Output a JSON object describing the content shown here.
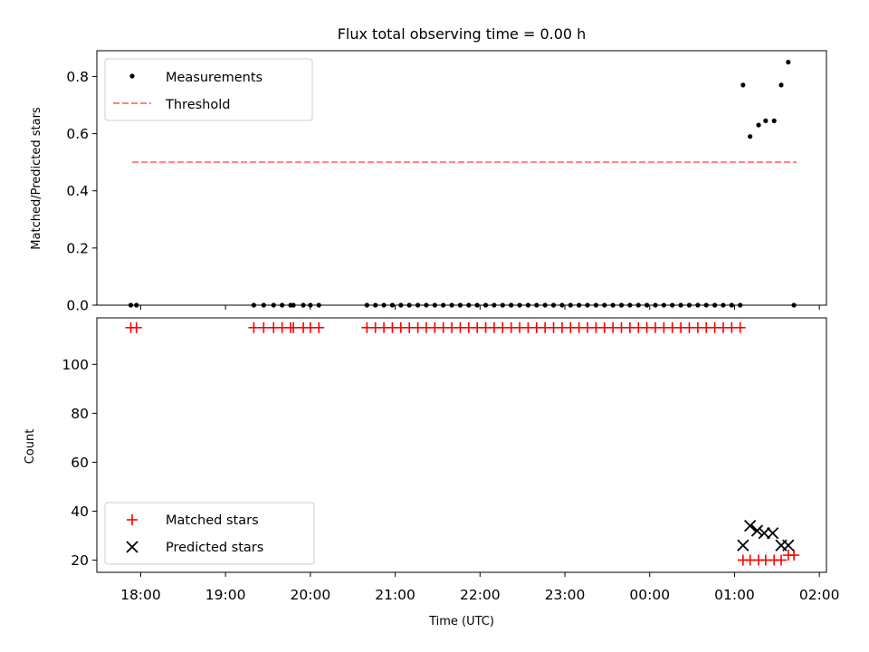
{
  "chart_data": [
    {
      "type": "scatter",
      "title": "Flux total observing time = 0.00 h",
      "xlabel": "",
      "ylabel": "Matched/Predicted stars",
      "xlim": [
        "17:29",
        "02:05"
      ],
      "ylim": [
        0,
        0.89
      ],
      "yticks": [
        0.0,
        0.2,
        0.4,
        0.6,
        0.8
      ],
      "ytick_labels": [
        "0.0",
        "0.2",
        "0.4",
        "0.6",
        "0.8"
      ],
      "grid": false,
      "legend_position": "top-left",
      "series": [
        {
          "name": "Measurements",
          "kind": "scatter",
          "marker": "dot",
          "color": "#000000",
          "points": [
            [
              "17:53",
              0
            ],
            [
              "17:57",
              0
            ],
            [
              "19:20",
              0
            ],
            [
              "19:27",
              0
            ],
            [
              "19:34",
              0
            ],
            [
              "19:40",
              0
            ],
            [
              "19:46",
              0
            ],
            [
              "19:48",
              0
            ],
            [
              "19:55",
              0
            ],
            [
              "20:00",
              0
            ],
            [
              "20:06",
              0
            ],
            [
              "20:40",
              0
            ],
            [
              "20:46",
              0
            ],
            [
              "20:52",
              0
            ],
            [
              "20:58",
              0
            ],
            [
              "21:04",
              0
            ],
            [
              "21:10",
              0
            ],
            [
              "21:16",
              0
            ],
            [
              "21:22",
              0
            ],
            [
              "21:28",
              0
            ],
            [
              "21:34",
              0
            ],
            [
              "21:40",
              0
            ],
            [
              "21:46",
              0
            ],
            [
              "21:52",
              0
            ],
            [
              "21:58",
              0
            ],
            [
              "22:04",
              0
            ],
            [
              "22:10",
              0
            ],
            [
              "22:16",
              0
            ],
            [
              "22:22",
              0
            ],
            [
              "22:28",
              0
            ],
            [
              "22:34",
              0
            ],
            [
              "22:40",
              0
            ],
            [
              "22:46",
              0
            ],
            [
              "22:52",
              0
            ],
            [
              "22:58",
              0
            ],
            [
              "23:04",
              0
            ],
            [
              "23:10",
              0
            ],
            [
              "23:16",
              0
            ],
            [
              "23:22",
              0
            ],
            [
              "23:28",
              0
            ],
            [
              "23:34",
              0
            ],
            [
              "23:40",
              0
            ],
            [
              "23:46",
              0
            ],
            [
              "23:52",
              0
            ],
            [
              "23:58",
              0
            ],
            [
              "00:04",
              0
            ],
            [
              "00:10",
              0
            ],
            [
              "00:16",
              0
            ],
            [
              "00:22",
              0
            ],
            [
              "00:28",
              0
            ],
            [
              "00:34",
              0
            ],
            [
              "00:40",
              0
            ],
            [
              "00:46",
              0
            ],
            [
              "00:52",
              0
            ],
            [
              "00:58",
              0
            ],
            [
              "01:04",
              0
            ],
            [
              "01:06",
              0.77
            ],
            [
              "01:11",
              0.59
            ],
            [
              "01:17",
              0.63
            ],
            [
              "01:22",
              0.645
            ],
            [
              "01:28",
              0.645
            ],
            [
              "01:33",
              0.77
            ],
            [
              "01:38",
              0.85
            ],
            [
              "01:42",
              0
            ]
          ]
        },
        {
          "name": "Threshold",
          "kind": "line",
          "style": "dashed",
          "color": "#ff8080",
          "x": [
            "17:54",
            "01:44"
          ],
          "y": [
            0.5,
            0.5
          ]
        }
      ]
    },
    {
      "type": "scatter",
      "title": "",
      "xlabel": "Time (UTC)",
      "ylabel": "Count",
      "xlim": [
        "17:29",
        "02:05"
      ],
      "ylim": [
        15,
        119
      ],
      "yticks": [
        20,
        40,
        60,
        80,
        100
      ],
      "ytick_labels": [
        "20",
        "40",
        "60",
        "80",
        "100"
      ],
      "xticks": [
        "18:00",
        "19:00",
        "20:00",
        "21:00",
        "22:00",
        "23:00",
        "00:00",
        "01:00",
        "02:00"
      ],
      "xtick_labels": [
        "18:00",
        "19:00",
        "20:00",
        "21:00",
        "22:00",
        "23:00",
        "00:00",
        "01:00",
        "02:00"
      ],
      "grid": false,
      "legend_position": "bottom-left",
      "series": [
        {
          "name": "Matched stars",
          "kind": "scatter",
          "marker": "plus",
          "color": "#ff0000",
          "points": [
            [
              "17:53",
              115
            ],
            [
              "17:57",
              115
            ],
            [
              "19:20",
              115
            ],
            [
              "19:27",
              115
            ],
            [
              "19:34",
              115
            ],
            [
              "19:40",
              115
            ],
            [
              "19:46",
              115
            ],
            [
              "19:48",
              115
            ],
            [
              "19:55",
              115
            ],
            [
              "20:00",
              115
            ],
            [
              "20:06",
              115
            ],
            [
              "20:40",
              115
            ],
            [
              "20:46",
              115
            ],
            [
              "20:52",
              115
            ],
            [
              "20:58",
              115
            ],
            [
              "21:04",
              115
            ],
            [
              "21:10",
              115
            ],
            [
              "21:16",
              115
            ],
            [
              "21:22",
              115
            ],
            [
              "21:28",
              115
            ],
            [
              "21:34",
              115
            ],
            [
              "21:40",
              115
            ],
            [
              "21:46",
              115
            ],
            [
              "21:52",
              115
            ],
            [
              "21:58",
              115
            ],
            [
              "22:04",
              115
            ],
            [
              "22:10",
              115
            ],
            [
              "22:16",
              115
            ],
            [
              "22:22",
              115
            ],
            [
              "22:28",
              115
            ],
            [
              "22:34",
              115
            ],
            [
              "22:40",
              115
            ],
            [
              "22:46",
              115
            ],
            [
              "22:52",
              115
            ],
            [
              "22:58",
              115
            ],
            [
              "23:04",
              115
            ],
            [
              "23:10",
              115
            ],
            [
              "23:16",
              115
            ],
            [
              "23:22",
              115
            ],
            [
              "23:28",
              115
            ],
            [
              "23:34",
              115
            ],
            [
              "23:40",
              115
            ],
            [
              "23:46",
              115
            ],
            [
              "23:52",
              115
            ],
            [
              "23:58",
              115
            ],
            [
              "00:04",
              115
            ],
            [
              "00:10",
              115
            ],
            [
              "00:16",
              115
            ],
            [
              "00:22",
              115
            ],
            [
              "00:28",
              115
            ],
            [
              "00:34",
              115
            ],
            [
              "00:40",
              115
            ],
            [
              "00:46",
              115
            ],
            [
              "00:52",
              115
            ],
            [
              "00:58",
              115
            ],
            [
              "01:04",
              115
            ],
            [
              "01:06",
              20
            ],
            [
              "01:11",
              20
            ],
            [
              "01:17",
              20
            ],
            [
              "01:22",
              20
            ],
            [
              "01:28",
              20
            ],
            [
              "01:33",
              20
            ],
            [
              "01:38",
              22
            ],
            [
              "01:42",
              22
            ]
          ]
        },
        {
          "name": "Predicted stars",
          "kind": "scatter",
          "marker": "x",
          "color": "#000000",
          "points": [
            [
              "01:06",
              26
            ],
            [
              "01:11",
              34
            ],
            [
              "01:16",
              32
            ],
            [
              "01:21",
              31
            ],
            [
              "01:27",
              31
            ],
            [
              "01:33",
              26
            ],
            [
              "01:38",
              26
            ]
          ]
        }
      ]
    }
  ]
}
